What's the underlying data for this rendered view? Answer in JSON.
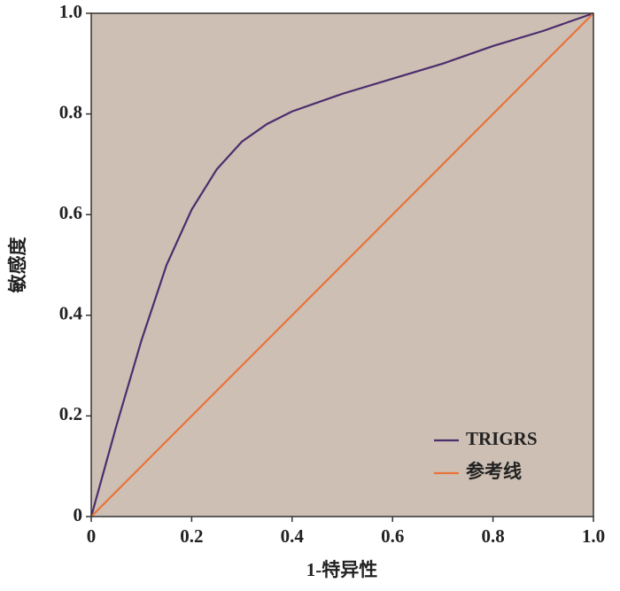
{
  "chart_data": {
    "type": "line",
    "x_label": "1-特异性",
    "y_label": "敏感度",
    "xlim": [
      0,
      1
    ],
    "ylim": [
      0,
      1
    ],
    "xticks": [
      0,
      0.2,
      0.4,
      0.6,
      0.8,
      {
        "value": 1,
        "label": "1.0"
      }
    ],
    "yticks": [
      0,
      0.2,
      0.4,
      0.6,
      0.8,
      {
        "value": 1,
        "label": "1.0"
      }
    ],
    "background": "#cdbfb3",
    "legend": "lower right",
    "series": [
      {
        "name": "TRIGRS",
        "color": "#4b2d6e",
        "x": [
          0,
          0.05,
          0.1,
          0.15,
          0.2,
          0.25,
          0.3,
          0.35,
          0.4,
          0.5,
          0.6,
          0.7,
          0.8,
          0.9,
          1
        ],
        "values": [
          0,
          0.18,
          0.35,
          0.5,
          0.61,
          0.69,
          0.745,
          0.78,
          0.805,
          0.84,
          0.87,
          0.9,
          0.935,
          0.965,
          1
        ]
      },
      {
        "name": "参考线",
        "color": "#e8733a",
        "x": [
          0,
          1
        ],
        "values": [
          0,
          1
        ]
      }
    ]
  }
}
